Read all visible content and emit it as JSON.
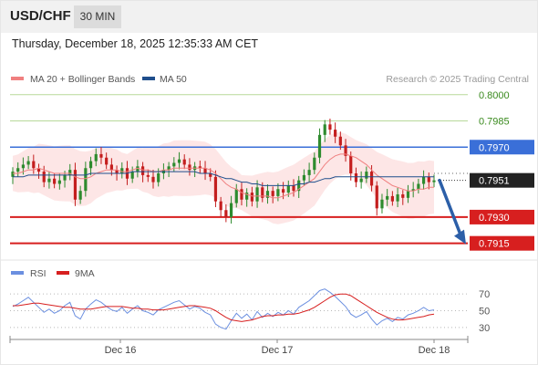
{
  "header": {
    "symbol": "USD/CHF",
    "interval": "30 MIN",
    "timestamp": "Thursday, December 18, 2025 12:35:33 AM CET"
  },
  "legend": {
    "ma20_label": "MA 20 + Bollinger Bands",
    "ma50_label": "MA 50",
    "credit": "Research © 2025 Trading Central",
    "rsi_label": "RSI",
    "rsi_ma_label": "9MA"
  },
  "colors": {
    "ma20": "#f08080",
    "ma50": "#1f4e8c",
    "bollinger_fill": "#fde2e2",
    "green_level": "#b8d99a",
    "blue_level": "#3a6fd8",
    "red_level": "#d71f1f",
    "candle_up": "#2e8b2e",
    "candle_down": "#c41e1e",
    "rsi": "#6b8fe0",
    "rsi_ma": "#d71f1f",
    "projection_arrow": "#2c5fa8"
  },
  "chart_data": [
    {
      "type": "candlestick",
      "title": "USD/CHF",
      "interval": "30 MIN",
      "x_tick_labels": [
        "Dec 16",
        "Dec 17",
        "Dec 18"
      ],
      "ylim": [
        0.7907,
        0.8003
      ],
      "levels": [
        {
          "label": "0.8000",
          "value": 0.8,
          "kind": "target"
        },
        {
          "label": "0.7985",
          "value": 0.7985,
          "kind": "target"
        },
        {
          "label": "0.7970",
          "value": 0.797,
          "kind": "pivot"
        },
        {
          "label": "0.7930",
          "value": 0.793,
          "kind": "support"
        },
        {
          "label": "0.7915",
          "value": 0.7915,
          "kind": "support"
        }
      ],
      "last_price": {
        "label": "0.7951",
        "value": 0.7951
      },
      "projection": {
        "from": 0.7951,
        "to": 0.7915
      },
      "closes": [
        0.7956,
        0.7958,
        0.796,
        0.7962,
        0.7958,
        0.7956,
        0.795,
        0.7952,
        0.7949,
        0.7951,
        0.7954,
        0.7957,
        0.794,
        0.7945,
        0.7958,
        0.7962,
        0.7966,
        0.7964,
        0.796,
        0.7957,
        0.7955,
        0.7958,
        0.7952,
        0.7956,
        0.7959,
        0.7954,
        0.7953,
        0.795,
        0.7955,
        0.7957,
        0.7959,
        0.7961,
        0.7963,
        0.796,
        0.7957,
        0.7959,
        0.7958,
        0.7955,
        0.7953,
        0.7939,
        0.7934,
        0.793,
        0.7938,
        0.7946,
        0.794,
        0.7944,
        0.7939,
        0.7947,
        0.7941,
        0.7945,
        0.7942,
        0.7946,
        0.7944,
        0.7948,
        0.7945,
        0.7951,
        0.7954,
        0.7957,
        0.7964,
        0.7977,
        0.7983,
        0.798,
        0.7976,
        0.7971,
        0.7965,
        0.7955,
        0.795,
        0.7952,
        0.7956,
        0.7948,
        0.7935,
        0.794,
        0.7942,
        0.7939,
        0.7943,
        0.7941,
        0.7945,
        0.7946,
        0.7949,
        0.7953,
        0.795,
        0.7951
      ],
      "ma20": [
        0.7955,
        0.7955,
        0.7956,
        0.7957,
        0.7957,
        0.7958,
        0.7957,
        0.7956,
        0.7955,
        0.7955,
        0.7955,
        0.7955,
        0.7953,
        0.7952,
        0.7952,
        0.7953,
        0.7955,
        0.7956,
        0.7957,
        0.7957,
        0.7957,
        0.7956,
        0.7956,
        0.7957,
        0.7958,
        0.7957,
        0.7957,
        0.7956,
        0.7956,
        0.7957,
        0.7957,
        0.7958,
        0.7958,
        0.7958,
        0.7958,
        0.7958,
        0.7958,
        0.7958,
        0.7957,
        0.7955,
        0.7952,
        0.7949,
        0.7947,
        0.7946,
        0.7944,
        0.7943,
        0.7942,
        0.7942,
        0.7942,
        0.7942,
        0.7941,
        0.7941,
        0.7942,
        0.7943,
        0.7944,
        0.7946,
        0.7948,
        0.795,
        0.7952,
        0.7956,
        0.796,
        0.7963,
        0.7965,
        0.7966,
        0.7966,
        0.7965,
        0.7964,
        0.7962,
        0.796,
        0.7957,
        0.7954,
        0.7952,
        0.795,
        0.7948,
        0.7947,
        0.7946,
        0.7945,
        0.7945,
        0.7946,
        0.7946,
        0.7947,
        0.7947
      ],
      "ma50": [
        0.7953,
        0.7953,
        0.7953,
        0.7954,
        0.7954,
        0.7954,
        0.7954,
        0.7954,
        0.7954,
        0.7954,
        0.7954,
        0.7954,
        0.7954,
        0.7954,
        0.7954,
        0.7955,
        0.7955,
        0.7955,
        0.7955,
        0.7955,
        0.7955,
        0.7955,
        0.7955,
        0.7956,
        0.7956,
        0.7956,
        0.7956,
        0.7956,
        0.7956,
        0.7956,
        0.7956,
        0.7956,
        0.7956,
        0.7956,
        0.7956,
        0.7956,
        0.7955,
        0.7955,
        0.7955,
        0.7954,
        0.7953,
        0.7952,
        0.7952,
        0.7951,
        0.795,
        0.795,
        0.7949,
        0.7949,
        0.7948,
        0.7948,
        0.7948,
        0.7948,
        0.7948,
        0.7948,
        0.7948,
        0.7949,
        0.7949,
        0.795,
        0.795,
        0.7951,
        0.7952,
        0.7952,
        0.7953,
        0.7953,
        0.7953,
        0.7953,
        0.7953,
        0.7953,
        0.7953,
        0.7953,
        0.7953,
        0.7953,
        0.7953,
        0.7953,
        0.7953,
        0.7953,
        0.7953,
        0.7953,
        0.7953,
        0.7953,
        0.7953,
        0.7953
      ]
    },
    {
      "type": "line",
      "ylim": [
        20,
        80
      ],
      "y_tick_labels": [
        "70",
        "50",
        "30"
      ],
      "y_ticks": [
        70,
        50,
        30
      ],
      "series": [
        {
          "name": "RSI",
          "values": [
            55,
            58,
            62,
            66,
            60,
            54,
            48,
            52,
            47,
            50,
            56,
            60,
            44,
            40,
            52,
            58,
            63,
            60,
            55,
            51,
            49,
            54,
            47,
            52,
            56,
            50,
            48,
            45,
            51,
            54,
            57,
            60,
            62,
            57,
            52,
            55,
            53,
            48,
            45,
            34,
            30,
            28,
            38,
            47,
            41,
            46,
            39,
            49,
            42,
            47,
            43,
            48,
            45,
            50,
            46,
            54,
            58,
            62,
            68,
            74,
            76,
            72,
            67,
            61,
            55,
            46,
            42,
            45,
            49,
            40,
            33,
            38,
            41,
            37,
            42,
            40,
            45,
            47,
            50,
            54,
            50,
            51
          ]
        },
        {
          "name": "9MA",
          "values": [
            56,
            56,
            57,
            58,
            59,
            59,
            58,
            57,
            56,
            55,
            54,
            54,
            53,
            52,
            52,
            52,
            53,
            54,
            55,
            55,
            55,
            55,
            54,
            53,
            53,
            52,
            52,
            51,
            51,
            51,
            52,
            53,
            54,
            55,
            56,
            56,
            55,
            54,
            53,
            50,
            46,
            42,
            39,
            38,
            37,
            38,
            39,
            41,
            43,
            44,
            44,
            45,
            45,
            46,
            46,
            47,
            49,
            51,
            54,
            58,
            62,
            66,
            69,
            70,
            70,
            68,
            64,
            60,
            56,
            52,
            48,
            45,
            42,
            40,
            39,
            39,
            40,
            41,
            42,
            43,
            45,
            46
          ]
        }
      ]
    }
  ]
}
